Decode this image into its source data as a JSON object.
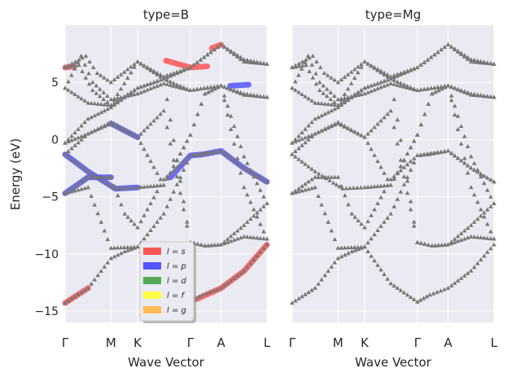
{
  "chart_data": {
    "type": "line",
    "ylabel": "Energy (eV)",
    "ylim": [
      -16,
      10
    ],
    "yticks": [
      -15,
      -10,
      -5,
      0,
      5
    ],
    "ytick_labels": [
      "−15",
      "−10",
      "−5",
      "0",
      "5"
    ],
    "kpath": {
      "labels": [
        "Γ",
        "M",
        "K",
        "Γ",
        "A",
        "L"
      ],
      "positions": [
        0,
        1,
        1.58,
        2.73,
        3.4,
        4.4
      ]
    },
    "panels": [
      {
        "title": "type=B",
        "xlabel": "Wave Vector"
      },
      {
        "title": "type=Mg",
        "xlabel": "Wave Vector"
      }
    ],
    "legend": {
      "location": "lower center of left panel",
      "entries": [
        {
          "label": "l = s",
          "color": "#ff5555"
        },
        {
          "label": "l = p",
          "color": "#5555ff"
        },
        {
          "label": "l = d",
          "color": "#55a855"
        },
        {
          "label": "l = f",
          "color": "#ffff44"
        },
        {
          "label": "l = g",
          "color": "#ffbb55"
        }
      ]
    },
    "marker_color": "#777777",
    "bands": [
      {
        "name": "band-1",
        "points": [
          [
            0,
            -14.3
          ],
          [
            0.5,
            -13.0
          ],
          [
            1.0,
            -10.4
          ],
          [
            1.3,
            -9.8
          ],
          [
            1.58,
            -9.4
          ],
          [
            2.15,
            -12.6
          ],
          [
            2.73,
            -14.2
          ],
          [
            3.0,
            -13.6
          ],
          [
            3.4,
            -13.0
          ],
          [
            3.9,
            -11.5
          ],
          [
            4.4,
            -9.2
          ]
        ]
      },
      {
        "name": "band-2",
        "points": [
          [
            0,
            -4.7
          ],
          [
            0.5,
            -4.2
          ],
          [
            1.0,
            -9.5
          ],
          [
            1.58,
            -9.4
          ],
          [
            2.15,
            -6.5
          ],
          [
            2.73,
            -1.4
          ],
          [
            3.0,
            -1.3
          ],
          [
            3.4,
            -1.0
          ],
          [
            3.9,
            -2.5
          ],
          [
            4.4,
            -3.7
          ]
        ]
      },
      {
        "name": "band-3",
        "points": [
          [
            0,
            -4.7
          ],
          [
            0.5,
            -3.3
          ],
          [
            1.0,
            -3.3
          ],
          [
            1.3,
            -6.5
          ],
          [
            1.58,
            -7.7
          ],
          [
            2.15,
            -3.5
          ],
          [
            2.73,
            -1.4
          ],
          [
            3.4,
            -1.0
          ],
          [
            3.9,
            -2.5
          ],
          [
            4.4,
            -3.7
          ]
        ]
      },
      {
        "name": "band-4",
        "points": [
          [
            0,
            -1.3
          ],
          [
            0.5,
            -2.8
          ],
          [
            0.9,
            -3.8
          ],
          [
            1.1,
            -4.3
          ],
          [
            1.58,
            -4.2
          ],
          [
            2.15,
            -4.0
          ],
          [
            2.73,
            0.4
          ],
          [
            3.05,
            4.0
          ],
          [
            3.4,
            4.7
          ],
          [
            3.9,
            -1.5
          ],
          [
            4.4,
            -5.6
          ]
        ]
      },
      {
        "name": "band-5",
        "points": [
          [
            0,
            -1.3
          ],
          [
            0.5,
            0.5
          ],
          [
            1.0,
            1.5
          ],
          [
            1.58,
            0.2
          ],
          [
            2.15,
            -4.0
          ],
          [
            2.73,
            0.4
          ],
          [
            3.05,
            4.0
          ],
          [
            3.4,
            4.7
          ],
          [
            3.9,
            -4.2
          ],
          [
            4.4,
            -8.7
          ]
        ]
      },
      {
        "name": "band-6",
        "points": [
          [
            0,
            -0.3
          ],
          [
            0.5,
            0.5
          ],
          [
            1.0,
            1.4
          ],
          [
            1.58,
            0.2
          ],
          [
            2.15,
            2.5
          ],
          [
            2.73,
            -9.0
          ],
          [
            3.05,
            -9.3
          ],
          [
            3.4,
            -9.2
          ],
          [
            3.9,
            -7.5
          ],
          [
            4.4,
            -5.6
          ]
        ]
      },
      {
        "name": "band-7",
        "points": [
          [
            0,
            -0.3
          ],
          [
            0.5,
            1.8
          ],
          [
            1.0,
            2.8
          ],
          [
            1.58,
            4.5
          ],
          [
            2.15,
            5.3
          ],
          [
            2.73,
            -9.0
          ],
          [
            3.05,
            -9.3
          ],
          [
            3.4,
            -9.2
          ],
          [
            3.9,
            -8.5
          ],
          [
            4.4,
            -8.7
          ]
        ]
      },
      {
        "name": "band-8",
        "points": [
          [
            0,
            4.5
          ],
          [
            0.5,
            3.2
          ],
          [
            1.0,
            3.0
          ],
          [
            1.58,
            4.5
          ],
          [
            2.15,
            5.3
          ],
          [
            2.73,
            6.3
          ],
          [
            3.4,
            8.3
          ],
          [
            3.9,
            7.0
          ],
          [
            4.4,
            6.6
          ]
        ]
      },
      {
        "name": "band-9",
        "points": [
          [
            0,
            4.5
          ],
          [
            0.35,
            7.3
          ],
          [
            0.6,
            5.0
          ],
          [
            1.0,
            3.5
          ],
          [
            1.58,
            4.0
          ],
          [
            2.15,
            4.9
          ],
          [
            2.73,
            4.3
          ],
          [
            3.4,
            4.7
          ],
          [
            3.9,
            4.0
          ],
          [
            4.4,
            3.7
          ]
        ]
      },
      {
        "name": "band-10",
        "points": [
          [
            0,
            6.3
          ],
          [
            0.45,
            7.3
          ],
          [
            0.7,
            5.8
          ],
          [
            1.0,
            5.0
          ],
          [
            1.58,
            6.8
          ],
          [
            2.15,
            5.5
          ],
          [
            2.73,
            6.3
          ],
          [
            3.4,
            8.3
          ],
          [
            3.9,
            6.8
          ],
          [
            4.4,
            6.6
          ]
        ]
      },
      {
        "name": "band-11",
        "points": [
          [
            0,
            6.3
          ],
          [
            0.3,
            6.5
          ],
          [
            0.6,
            4.3
          ],
          [
            1.0,
            3.0
          ],
          [
            1.58,
            6.8
          ],
          [
            2.15,
            5.3
          ],
          [
            2.73,
            4.3
          ],
          [
            3.4,
            4.7
          ],
          [
            3.9,
            3.9
          ],
          [
            4.4,
            3.7
          ]
        ]
      }
    ],
    "projections": [
      {
        "orbital": "l = s",
        "color": "#ff5555",
        "segments": [
          [
            [
              0,
              -14.3
            ],
            [
              0.5,
              -13.0
            ]
          ],
          [
            [
              2.73,
              -14.2
            ],
            [
              3.4,
              -13.0
            ],
            [
              3.9,
              -11.5
            ],
            [
              4.4,
              -9.2
            ]
          ],
          [
            [
              0,
              6.3
            ],
            [
              0.2,
              6.4
            ]
          ],
          [
            [
              2.2,
              6.9
            ],
            [
              2.73,
              6.3
            ],
            [
              3.1,
              6.4
            ]
          ],
          [
            [
              3.2,
              8.0
            ],
            [
              3.4,
              8.3
            ]
          ]
        ]
      },
      {
        "orbital": "l = p",
        "color": "#5555ff",
        "segments": [
          [
            [
              0,
              -1.3
            ],
            [
              0.5,
              -2.8
            ],
            [
              0.9,
              -3.8
            ],
            [
              1.1,
              -4.3
            ],
            [
              1.58,
              -4.2
            ]
          ],
          [
            [
              0,
              -4.7
            ],
            [
              0.5,
              -3.3
            ],
            [
              1.0,
              -3.3
            ]
          ],
          [
            [
              2.3,
              -3.3
            ],
            [
              2.73,
              -1.4
            ],
            [
              3.0,
              -1.3
            ],
            [
              3.4,
              -1.0
            ],
            [
              3.9,
              -2.5
            ],
            [
              4.4,
              -3.7
            ]
          ],
          [
            [
              1.0,
              1.4
            ],
            [
              1.58,
              0.2
            ]
          ],
          [
            [
              3.6,
              4.7
            ],
            [
              4.0,
              4.8
            ]
          ]
        ]
      }
    ]
  }
}
